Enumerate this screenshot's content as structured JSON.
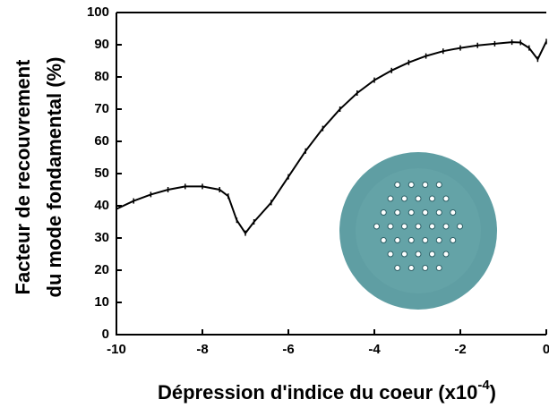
{
  "chart_data": {
    "type": "line",
    "ylabel": [
      "Facteur de recouvrement",
      "du mode fondamental (%)"
    ],
    "xlabel": [
      "Dépression d'indice du coeur (x10",
      "-4",
      ")"
    ],
    "x": [
      -10,
      -9.6,
      -9.2,
      -8.8,
      -8.4,
      -8.0,
      -7.6,
      -7.4,
      -7.2,
      -7.0,
      -6.8,
      -6.4,
      -6.0,
      -5.6,
      -5.2,
      -4.8,
      -4.4,
      -4.0,
      -3.6,
      -3.2,
      -2.8,
      -2.4,
      -2.0,
      -1.6,
      -1.2,
      -0.8,
      -0.6,
      -0.4,
      -0.2,
      0.0
    ],
    "series": [
      {
        "color": "#000000",
        "values": [
          39,
          41.5,
          43.5,
          45,
          46,
          46,
          45,
          43,
          35.5,
          31.5,
          35,
          41,
          49,
          57,
          64,
          70,
          75,
          79,
          82,
          84.5,
          86.5,
          88,
          89,
          89.8,
          90.3,
          90.8,
          90.7,
          89,
          85.5,
          91
        ]
      }
    ],
    "xlim": [
      -10,
      0
    ],
    "ylim": [
      0,
      100
    ],
    "xticks": [
      -10,
      -8,
      -6,
      -4,
      -2,
      0
    ],
    "yticks": [
      0,
      10,
      20,
      30,
      40,
      50,
      60,
      70,
      80,
      90,
      100
    ]
  }
}
